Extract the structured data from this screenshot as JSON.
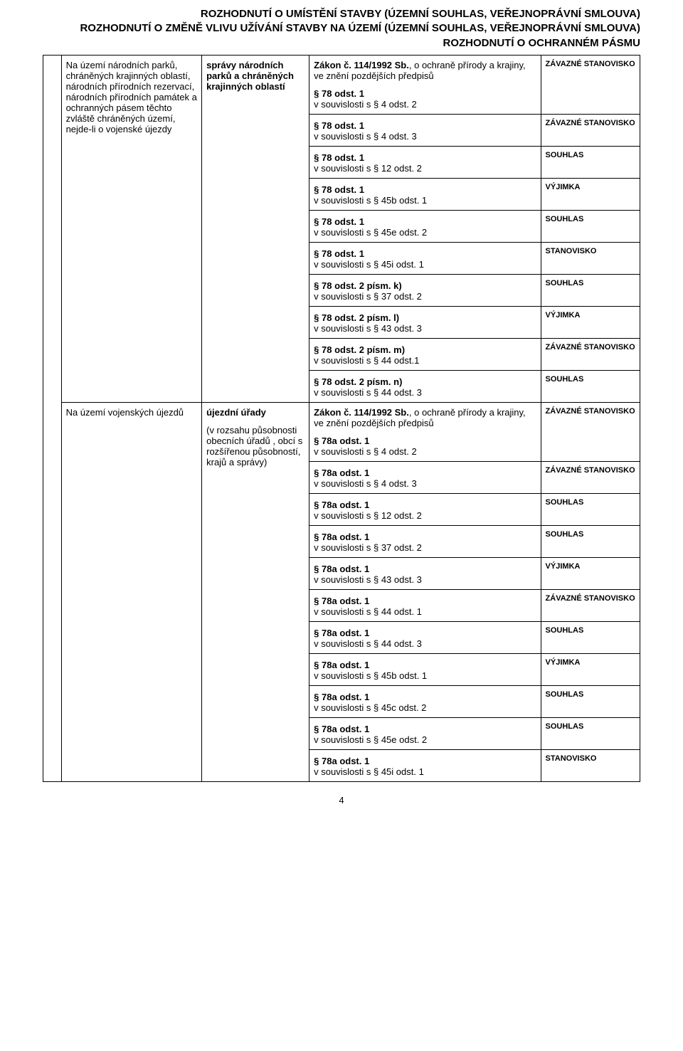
{
  "header": {
    "line1": "ROZHODNUTÍ O UMÍSTĚNÍ STAVBY (ÚZEMNÍ SOUHLAS, VEŘEJNOPRÁVNÍ SMLOUVA)",
    "line2": "ROZHODNUTÍ O ZMĚNĚ VLIVU UŽÍVÁNÍ STAVBY NA ÚZEMÍ (ÚZEMNÍ SOUHLAS, VEŘEJNOPRÁVNÍ SMLOUVA)",
    "line3": "ROZHODNUTÍ  O OCHRANNÉM PÁSMU"
  },
  "section1": {
    "colB": "Na území národních parků, chráněných krajinných oblastí, národních přírodních rezervací, národních přírodních památek a ochranných pásem těchto zvláště chráněných území, nejde-li o vojenské újezdy",
    "colC": "správy národních parků a chráněných krajinných oblastí",
    "lawTitle": "Zákon č. 114/1992 Sb.",
    "lawSub": ", o ochraně přírody a krajiny, ve znění pozdějších předpisů",
    "rows": [
      {
        "p1": "§ 78 odst. 1",
        "p2": "v souvislosti s § 4 odst. 2",
        "note": "ZÁVAZNÉ STANOVISKO"
      },
      {
        "p1": "§ 78 odst. 1",
        "p2": "v souvislosti s § 4 odst. 3",
        "note": "ZÁVAZNÉ STANOVISKO"
      },
      {
        "p1": "§ 78 odst. 1",
        "p2": "v souvislosti s § 12 odst. 2",
        "note": "SOUHLAS"
      },
      {
        "p1": "§ 78 odst. 1",
        "p2": "v souvislosti s § 45b odst. 1",
        "note": "VÝJIMKA"
      },
      {
        "p1": "§ 78 odst. 1",
        "p2": "v souvislosti s § 45e odst. 2",
        "note": "SOUHLAS"
      },
      {
        "p1": "§ 78 odst. 1",
        "p2": "v souvislosti s § 45i odst. 1",
        "note": "STANOVISKO"
      },
      {
        "p1": "§ 78 odst. 2 písm. k)",
        "p2": "v souvislosti s § 37 odst. 2",
        "note": "SOUHLAS"
      },
      {
        "p1": "§ 78 odst. 2 písm. l)",
        "p2": "v souvislosti s § 43 odst. 3",
        "note": "VÝJIMKA"
      },
      {
        "p1": "§ 78 odst. 2 písm. m)",
        "p2": "v souvislosti s § 44 odst.1",
        "note": "ZÁVAZNÉ STANOVISKO"
      },
      {
        "p1": "§ 78 odst. 2 písm. n)",
        "p2": "v souvislosti s § 44 odst. 3",
        "note": "SOUHLAS"
      }
    ]
  },
  "section2": {
    "colB": "Na území vojenských újezdů",
    "colC_bold": "újezdní úřady",
    "colC_rest": "(v rozsahu působnosti obecních úřadů , obcí s rozšířenou působností, krajů a správy)",
    "lawTitle": "Zákon č. 114/1992 Sb.",
    "lawSub": ", o ochraně přírody a krajiny, ve znění pozdějších předpisů",
    "rows": [
      {
        "p1": "§ 78a odst. 1",
        "p2": "v souvislosti s § 4 odst. 2",
        "note": "ZÁVAZNÉ STANOVISKO"
      },
      {
        "p1": "§ 78a odst. 1",
        "p2": "v souvislosti s § 4 odst. 3",
        "note": "ZÁVAZNÉ STANOVISKO"
      },
      {
        "p1": "§ 78a odst. 1",
        "p2": "v souvislosti s § 12 odst. 2",
        "note": "SOUHLAS"
      },
      {
        "p1": "§ 78a odst. 1",
        "p2": "v souvislosti s § 37 odst. 2",
        "note": "SOUHLAS"
      },
      {
        "p1": "§ 78a odst. 1",
        "p2": "v souvislosti s § 43 odst. 3",
        "note": "VÝJIMKA"
      },
      {
        "p1": "§ 78a odst. 1",
        "p2": "v souvislosti s § 44 odst. 1",
        "note": "ZÁVAZNÉ STANOVISKO"
      },
      {
        "p1": "§ 78a odst. 1",
        "p2": "v souvislosti s § 44 odst. 3",
        "note": "SOUHLAS"
      },
      {
        "p1": "§ 78a odst. 1",
        "p2": "v souvislosti s § 45b odst. 1",
        "note": "VÝJIMKA"
      },
      {
        "p1": "§ 78a odst. 1",
        "p2": "v souvislosti s § 45c odst. 2",
        "note": "SOUHLAS"
      },
      {
        "p1": "§ 78a odst. 1",
        "p2": "v souvislosti s § 45e odst. 2",
        "note": "SOUHLAS"
      },
      {
        "p1": "§ 78a odst. 1",
        "p2": "v souvislosti s § 45i odst. 1",
        "note": "STANOVISKO"
      }
    ]
  },
  "footer": {
    "pageNum": "4"
  }
}
